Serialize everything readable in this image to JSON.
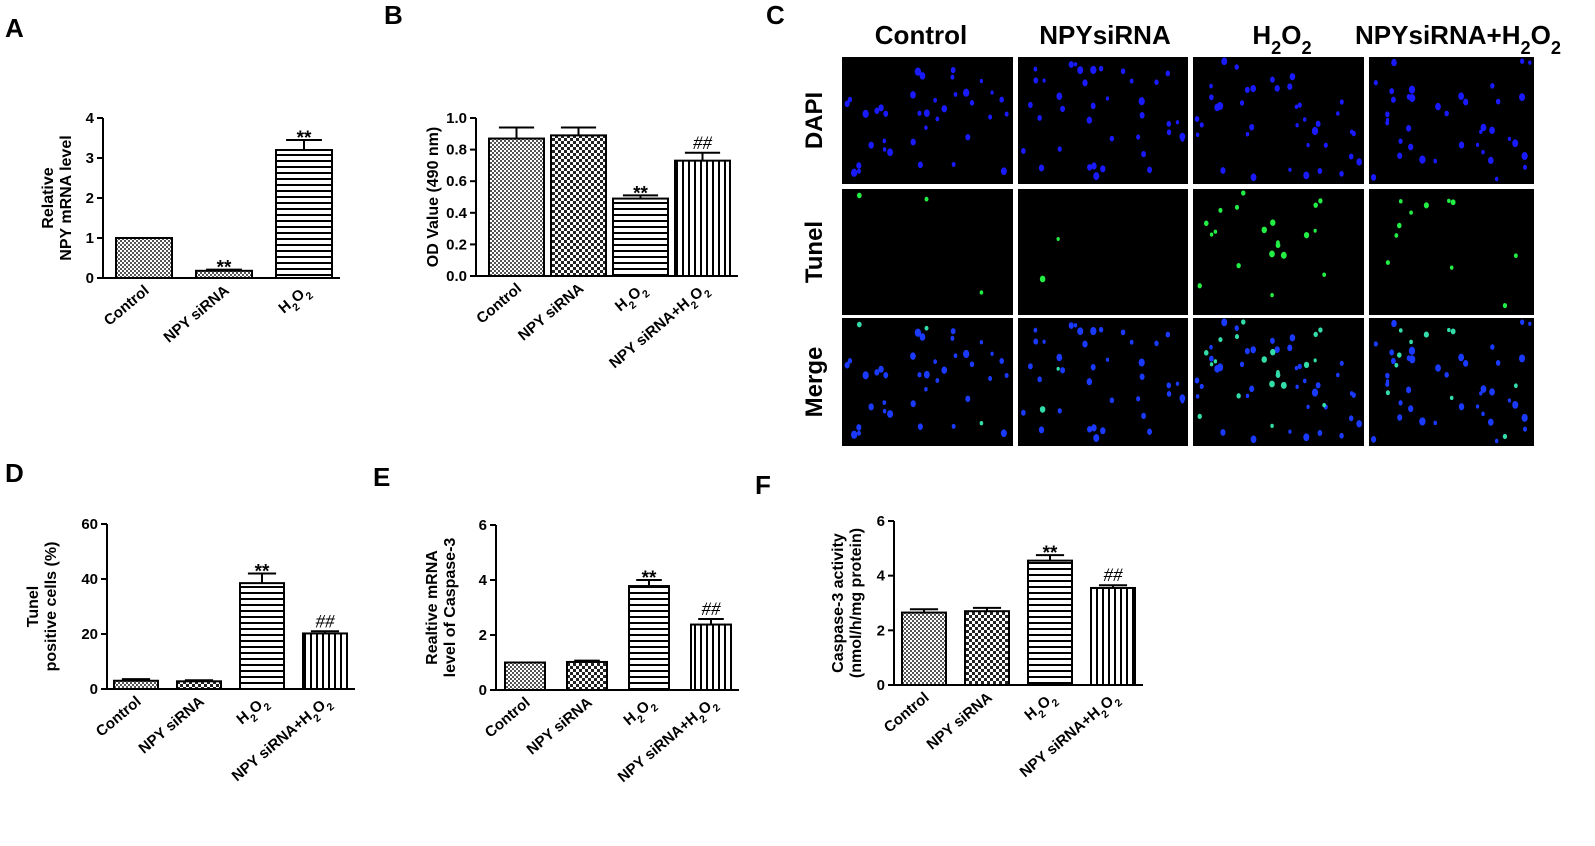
{
  "panel_labels": [
    "A",
    "B",
    "C",
    "D",
    "E",
    "F"
  ],
  "colors": {
    "axis": "#000000",
    "bar_fill": "#ffffff",
    "dapi": "#1a1aff",
    "tunel": "#22ee44",
    "merge_nuclei": "#1a3aff",
    "image_bg": "#000000"
  },
  "micrograph": {
    "columns": [
      {
        "text": "Control",
        "sub": "",
        "after": "",
        "sub2": "",
        "after2": ""
      },
      {
        "text": "NPYsiRNA",
        "sub": "",
        "after": "",
        "sub2": "",
        "after2": ""
      },
      {
        "text": "H",
        "sub": "2",
        "after": "O",
        "sub2": "2",
        "after2": ""
      },
      {
        "text": "NPYsiRNA+H",
        "sub": "2",
        "after": "O",
        "sub2": "2",
        "after2": ""
      }
    ],
    "rows": [
      "DAPI",
      "Tunel",
      "Merge"
    ]
  },
  "chart_data": [
    {
      "panel": "A",
      "type": "bar",
      "categories": [
        {
          "text": "Control",
          "sub": "",
          "after": "",
          "sub2": "",
          "after2": ""
        },
        {
          "text": "NPY siRNA",
          "sub": "",
          "after": "",
          "sub2": "",
          "after2": ""
        },
        {
          "text": "H",
          "sub": "2",
          "after": "O",
          "sub2": "2",
          "after2": ""
        }
      ],
      "values": [
        1.0,
        0.18,
        3.2
      ],
      "errors": [
        0.0,
        0.03,
        0.25
      ],
      "annotations": [
        "",
        "**",
        "**"
      ],
      "ylabel_lines": [
        "Relative",
        "NPY mRNA  level"
      ],
      "ylim": [
        0,
        4
      ],
      "yticks": [
        "0",
        "1",
        "2",
        "3",
        "4"
      ],
      "patterns": [
        "dots",
        "dots",
        "hlines"
      ]
    },
    {
      "panel": "B",
      "type": "bar",
      "categories": [
        {
          "text": "Control",
          "sub": "",
          "after": "",
          "sub2": "",
          "after2": ""
        },
        {
          "text": "NPY siRNA",
          "sub": "",
          "after": "",
          "sub2": "",
          "after2": ""
        },
        {
          "text": "H",
          "sub": "2",
          "after": "O",
          "sub2": "2",
          "after2": ""
        },
        {
          "text": "NPY siRNA+H",
          "sub": "2",
          "after": "O",
          "sub2": "2",
          "after2": ""
        }
      ],
      "values": [
        0.87,
        0.89,
        0.49,
        0.73
      ],
      "errors": [
        0.07,
        0.05,
        0.02,
        0.05
      ],
      "annotations": [
        "",
        "",
        "**",
        "##"
      ],
      "ylabel_lines": [
        "OD Value (490 nm)"
      ],
      "ylim": [
        0,
        1.0
      ],
      "yticks": [
        "0.0",
        "0.2",
        "0.4",
        "0.6",
        "0.8",
        "1.0"
      ],
      "patterns": [
        "dots",
        "check",
        "hlines",
        "vlines"
      ]
    },
    {
      "panel": "D",
      "type": "bar",
      "categories": [
        {
          "text": "Control",
          "sub": "",
          "after": "",
          "sub2": "",
          "after2": ""
        },
        {
          "text": "NPY siRNA",
          "sub": "",
          "after": "",
          "sub2": "",
          "after2": ""
        },
        {
          "text": "H",
          "sub": "2",
          "after": "O",
          "sub2": "2",
          "after2": ""
        },
        {
          "text": "NPY siRNA+H",
          "sub": "2",
          "after": "O",
          "sub2": "2",
          "after2": ""
        }
      ],
      "values": [
        3.0,
        2.8,
        38.5,
        20.2
      ],
      "errors": [
        0.6,
        0.4,
        3.5,
        0.8
      ],
      "annotations": [
        "",
        "",
        "**",
        "##"
      ],
      "ylabel_lines": [
        "Tunel",
        "positive cells (%)"
      ],
      "ylim": [
        0,
        60
      ],
      "yticks": [
        "0",
        "20",
        "40",
        "60"
      ],
      "patterns": [
        "dots",
        "check",
        "hlines",
        "vlines"
      ]
    },
    {
      "panel": "E",
      "type": "bar",
      "categories": [
        {
          "text": "Control",
          "sub": "",
          "after": "",
          "sub2": "",
          "after2": ""
        },
        {
          "text": "NPY siRNA",
          "sub": "",
          "after": "",
          "sub2": "",
          "after2": ""
        },
        {
          "text": "H",
          "sub": "2",
          "after": "O",
          "sub2": "2",
          "after2": ""
        },
        {
          "text": "NPY siRNA+H",
          "sub": "2",
          "after": "O",
          "sub2": "2",
          "after2": ""
        }
      ],
      "values": [
        1.0,
        1.02,
        3.78,
        2.38
      ],
      "errors": [
        0.0,
        0.05,
        0.22,
        0.2
      ],
      "annotations": [
        "",
        "",
        "**",
        "##"
      ],
      "ylabel_lines": [
        "Realtive mRNA",
        "level of Caspase-3"
      ],
      "ylim": [
        0,
        6
      ],
      "yticks": [
        "0",
        "2",
        "4",
        "6"
      ],
      "patterns": [
        "dots",
        "check",
        "hlines",
        "vlines"
      ]
    },
    {
      "panel": "F",
      "type": "bar",
      "categories": [
        {
          "text": "Control",
          "sub": "",
          "after": "",
          "sub2": "",
          "after2": ""
        },
        {
          "text": "NPY siRNA",
          "sub": "",
          "after": "",
          "sub2": "",
          "after2": ""
        },
        {
          "text": "H",
          "sub": "2",
          "after": "O",
          "sub2": "2",
          "after2": ""
        },
        {
          "text": "NPY siRNA+H",
          "sub": "2",
          "after": "O",
          "sub2": "2",
          "after2": ""
        }
      ],
      "values": [
        2.65,
        2.7,
        4.55,
        3.55
      ],
      "errors": [
        0.12,
        0.12,
        0.2,
        0.1
      ],
      "annotations": [
        "",
        "",
        "**",
        "##"
      ],
      "ylabel_lines": [
        "Caspase-3 activity",
        "(nmol/h/mg protein)"
      ],
      "ylim": [
        0,
        6
      ],
      "yticks": [
        "0",
        "2",
        "4",
        "6"
      ],
      "patterns": [
        "dots",
        "check",
        "hlines",
        "vlines"
      ]
    }
  ]
}
